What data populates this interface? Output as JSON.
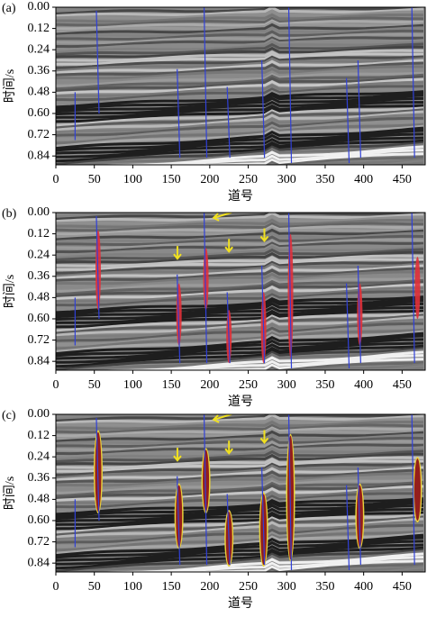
{
  "chart_data": [
    {
      "type": "image",
      "panel_label": "(a)",
      "xlabel": "道号",
      "ylabel": "时间/s",
      "xlim": [
        0,
        480
      ],
      "ylim": [
        0,
        0.89
      ],
      "xticks": [
        0,
        50,
        100,
        150,
        200,
        250,
        300,
        350,
        400,
        450
      ],
      "yticks": [
        {
          "value": 0,
          "label": "0.00"
        },
        {
          "value": 0.12,
          "label": "0.12"
        },
        {
          "value": 0.24,
          "label": "0.24"
        },
        {
          "value": 0.36,
          "label": "0.36"
        },
        {
          "value": 0.48,
          "label": "0.48"
        },
        {
          "value": 0.6,
          "label": "0.60"
        },
        {
          "value": 0.72,
          "label": "0.72"
        },
        {
          "value": 0.84,
          "label": "0.84"
        }
      ]
    },
    {
      "type": "image",
      "panel_label": "(b)",
      "xlabel": "道号",
      "ylabel": "时间/s",
      "xlim": [
        0,
        480
      ],
      "ylim": [
        0,
        0.89
      ],
      "xticks": [
        0,
        50,
        100,
        150,
        200,
        250,
        300,
        350,
        400,
        450
      ],
      "yticks": [
        {
          "value": 0,
          "label": "0.00"
        },
        {
          "value": 0.12,
          "label": "0.12"
        },
        {
          "value": 0.24,
          "label": "0.24"
        },
        {
          "value": 0.36,
          "label": "0.36"
        },
        {
          "value": 0.48,
          "label": "0.48"
        },
        {
          "value": 0.6,
          "label": "0.60"
        },
        {
          "value": 0.72,
          "label": "0.72"
        },
        {
          "value": 0.84,
          "label": "0.84"
        }
      ]
    },
    {
      "type": "image",
      "panel_label": "(c)",
      "xlabel": "道号",
      "ylabel": "时间/s",
      "xlim": [
        0,
        480
      ],
      "ylim": [
        0,
        0.89
      ],
      "xticks": [
        0,
        50,
        100,
        150,
        200,
        250,
        300,
        350,
        400,
        450
      ],
      "yticks": [
        {
          "value": 0,
          "label": "0.00"
        },
        {
          "value": 0.12,
          "label": "0.12"
        },
        {
          "value": 0.24,
          "label": "0.24"
        },
        {
          "value": 0.36,
          "label": "0.36"
        },
        {
          "value": 0.48,
          "label": "0.48"
        },
        {
          "value": 0.6,
          "label": "0.60"
        },
        {
          "value": 0.72,
          "label": "0.72"
        },
        {
          "value": 0.84,
          "label": "0.84"
        }
      ]
    }
  ]
}
